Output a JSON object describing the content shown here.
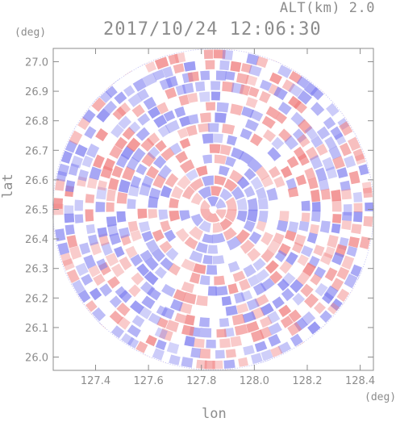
{
  "header": {
    "alt_label": "ALT(km) 2.0",
    "timestamp": "2017/10/24 12:06:30"
  },
  "chart_data": {
    "type": "heatmap",
    "title": "2017/10/24 12:06:30",
    "subtitle": "ALT(km) 2.0",
    "xlabel": "lon",
    "ylabel": "lat",
    "x_unit": "(deg)",
    "y_unit": "(deg)",
    "xlim": [
      127.24,
      128.45
    ],
    "ylim": [
      25.955,
      27.045
    ],
    "x_ticks": [
      127.4,
      127.6,
      127.8,
      128.0,
      128.2,
      128.4
    ],
    "x_tick_labels": [
      "127.4",
      "127.6",
      "127.8",
      "128.0",
      "128.2",
      "128.4"
    ],
    "y_ticks": [
      26.0,
      26.1,
      26.2,
      26.3,
      26.4,
      26.5,
      26.6,
      26.7,
      26.8,
      26.9,
      27.0
    ],
    "y_tick_labels": [
      "26.0",
      "26.1",
      "26.2",
      "26.3",
      "26.4",
      "26.5",
      "26.6",
      "26.7",
      "26.8",
      "26.9",
      "27.0"
    ],
    "center": {
      "lon": 127.845,
      "lat": 26.5
    },
    "radius_lat": 0.545,
    "grid": false,
    "colors": {
      "positive": "#f08080",
      "negative": "#8080f0",
      "axis": "#8c8c8c",
      "neutral": "#ffffff"
    }
  }
}
